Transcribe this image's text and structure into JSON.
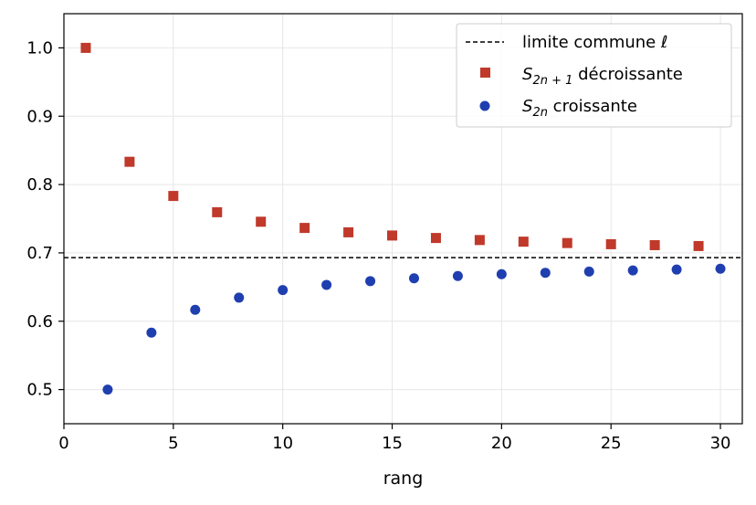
{
  "chart_data": {
    "type": "scatter",
    "xlabel": "rang",
    "ylabel": "",
    "title": "",
    "xlim": [
      0,
      31
    ],
    "ylim": [
      0.45,
      1.05
    ],
    "xticks": [
      0,
      5,
      10,
      15,
      20,
      25,
      30
    ],
    "yticks": [
      0.5,
      0.6,
      0.7,
      0.8,
      0.9,
      1.0
    ],
    "xtick_labels": [
      "0",
      "5",
      "10",
      "15",
      "20",
      "25",
      "30"
    ],
    "ytick_labels": [
      "0.5",
      "0.6",
      "0.7",
      "0.8",
      "0.9",
      "1.0"
    ],
    "grid": true,
    "legend_position": "top-right",
    "hline": {
      "y": 0.6931,
      "label": "limite commune ℓ",
      "color": "#000000",
      "style": "dashed"
    },
    "series": [
      {
        "name": "S_{2n+1} décroissante",
        "marker": "square",
        "color": "#c0392b",
        "x": [
          1,
          3,
          5,
          7,
          9,
          11,
          13,
          15,
          17,
          19,
          21,
          23,
          25,
          27,
          29
        ],
        "y": [
          1.0,
          0.8333,
          0.7833,
          0.7595,
          0.7456,
          0.7365,
          0.7301,
          0.7254,
          0.7218,
          0.7188,
          0.7164,
          0.7144,
          0.7127,
          0.7113,
          0.71
        ]
      },
      {
        "name": "S_{2n} croissante",
        "marker": "circle",
        "color": "#1f3fb0",
        "x": [
          2,
          4,
          6,
          8,
          10,
          12,
          14,
          16,
          18,
          20,
          22,
          24,
          26,
          28,
          30
        ],
        "y": [
          0.5,
          0.5833,
          0.6167,
          0.6345,
          0.6456,
          0.6532,
          0.6587,
          0.6628,
          0.6661,
          0.6688,
          0.6709,
          0.6727,
          0.6743,
          0.6756,
          0.6768
        ]
      }
    ],
    "legend": {
      "hline_label": "limite commune ℓ",
      "odd": {
        "symbol": "S",
        "sub": "2n + 1",
        "text": " décroissante"
      },
      "even": {
        "symbol": "S",
        "sub": "2n",
        "text": " croissante"
      }
    }
  }
}
